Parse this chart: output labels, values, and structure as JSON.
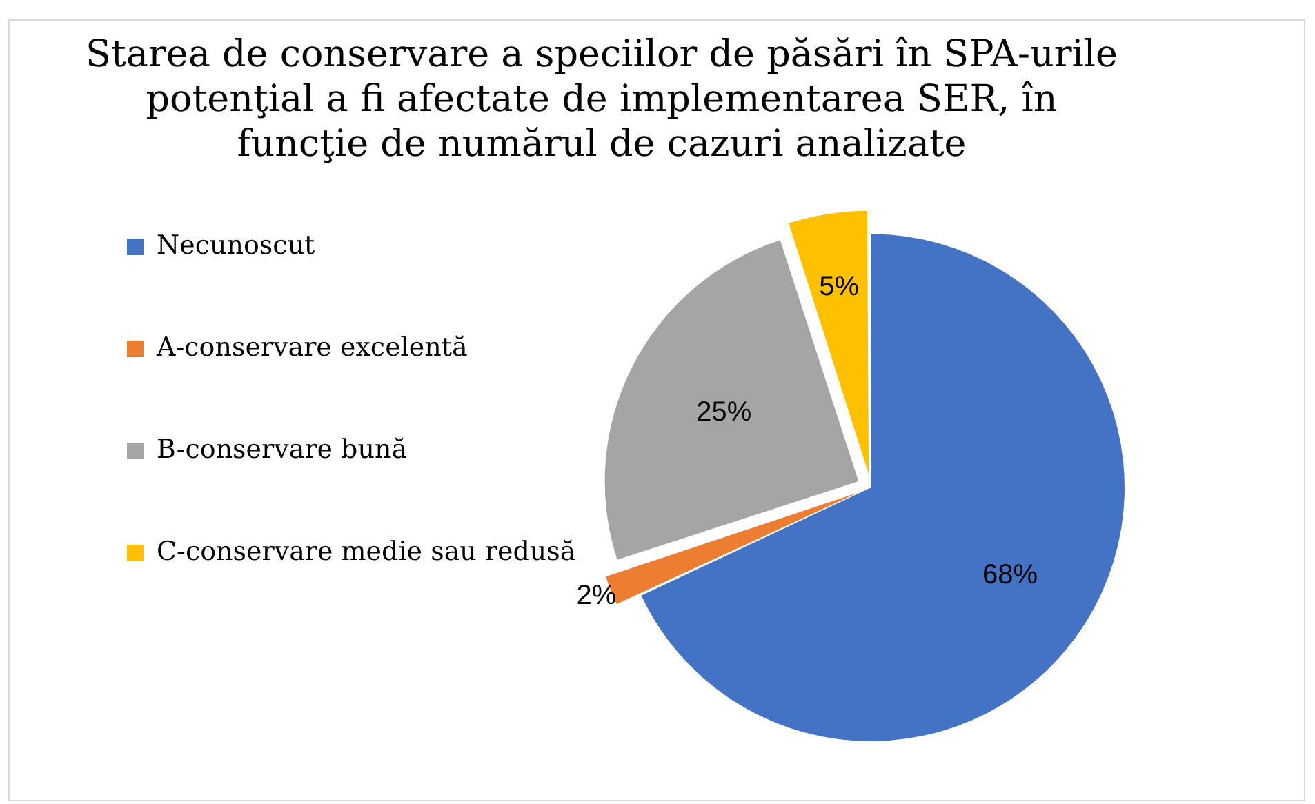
{
  "chart_data": {
    "type": "pie",
    "title": "Starea de conservare a speciilor de păsări în SPA-urile potenţial a fi afectate de implementarea SER, în funcţie de numărul de cazuri analizate",
    "categories": [
      "Necunoscut",
      "A-conservare excelentă",
      "B-conservare bună",
      "C-conservare medie sau redusă"
    ],
    "values": [
      68,
      2,
      25,
      5
    ],
    "colors": [
      "#4472c4",
      "#ed7d31",
      "#a5a5a5",
      "#ffc000"
    ],
    "value_labels": [
      "68%",
      "2%",
      "25%",
      "5%"
    ],
    "legend": "left"
  }
}
